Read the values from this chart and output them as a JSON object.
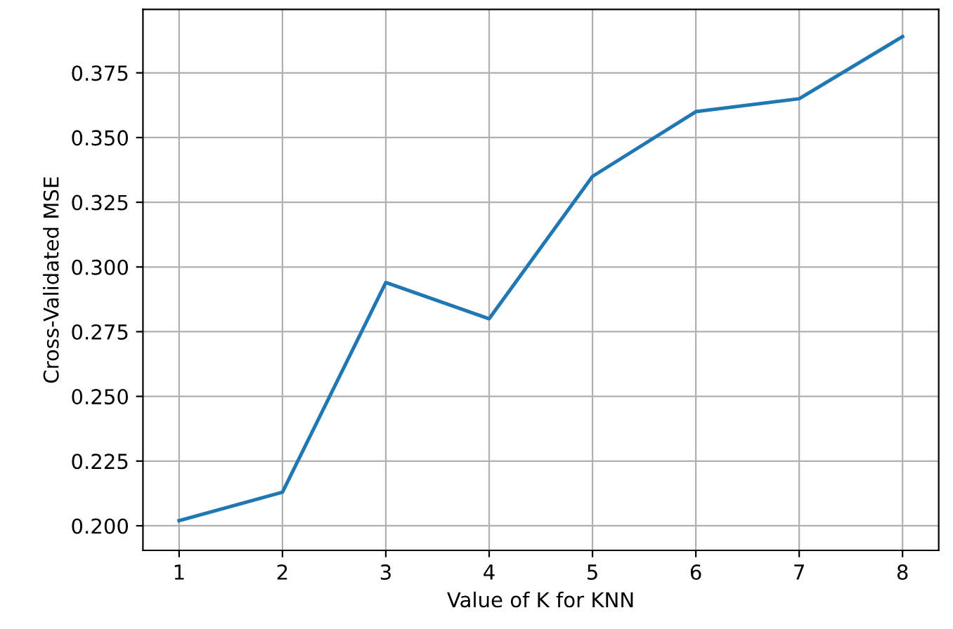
{
  "chart_data": {
    "type": "line",
    "xlabel": "Value of K for KNN",
    "ylabel": "Cross-Validated MSE",
    "x": [
      1,
      2,
      3,
      4,
      5,
      6,
      7,
      8
    ],
    "series": [
      {
        "color": "#1f77b4",
        "values": [
          0.202,
          0.213,
          0.294,
          0.28,
          0.335,
          0.36,
          0.365,
          0.389
        ]
      }
    ],
    "xlim": [
      0.65,
      8.35
    ],
    "ylim": [
      0.1905,
      0.3995
    ],
    "xticks": [
      1,
      2,
      3,
      4,
      5,
      6,
      7,
      8
    ],
    "yticks": [
      {
        "value": 0.2,
        "label": "0.200"
      },
      {
        "value": 0.225,
        "label": "0.225"
      },
      {
        "value": 0.25,
        "label": "0.250"
      },
      {
        "value": 0.275,
        "label": "0.275"
      },
      {
        "value": 0.3,
        "label": "0.300"
      },
      {
        "value": 0.325,
        "label": "0.325"
      },
      {
        "value": 0.35,
        "label": "0.350"
      },
      {
        "value": 0.375,
        "label": "0.375"
      }
    ],
    "grid": true
  }
}
